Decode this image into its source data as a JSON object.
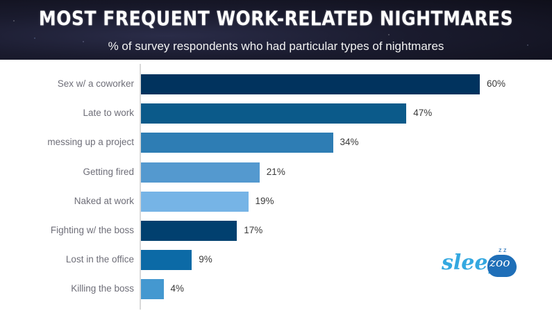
{
  "header": {
    "title": "Most Frequent Work-Related Nightmares",
    "subtitle": "% of survey respondents who had particular types of nightmares"
  },
  "logo": {
    "sleep": "sleep",
    "zoo": "zoo",
    "zz": "z z"
  },
  "chart_data": {
    "type": "bar",
    "orientation": "horizontal",
    "title": "Most Frequent Work-Related Nightmares",
    "subtitle": "% of survey respondents who had particular types of nightmares",
    "xlabel": "",
    "ylabel": "",
    "xlim": [
      0,
      60
    ],
    "grid": false,
    "legend": null,
    "unit": "%",
    "categories": [
      "Sex w/ a coworker",
      "Late to work",
      "messing up a project",
      "Getting fired",
      "Naked at work",
      "Fighting w/ the boss",
      "Lost in the office",
      "Killing the boss"
    ],
    "values": [
      60,
      47,
      34,
      21,
      19,
      17,
      9,
      4
    ],
    "value_labels": [
      "60%",
      "47%",
      "34%",
      "21%",
      "19%",
      "17%",
      "9%",
      "4%"
    ],
    "colors": [
      "#01335e",
      "#0b5a8a",
      "#2e7db4",
      "#5499cf",
      "#76b4e6",
      "#01406f",
      "#0c6aa6",
      "#4498d0"
    ]
  }
}
